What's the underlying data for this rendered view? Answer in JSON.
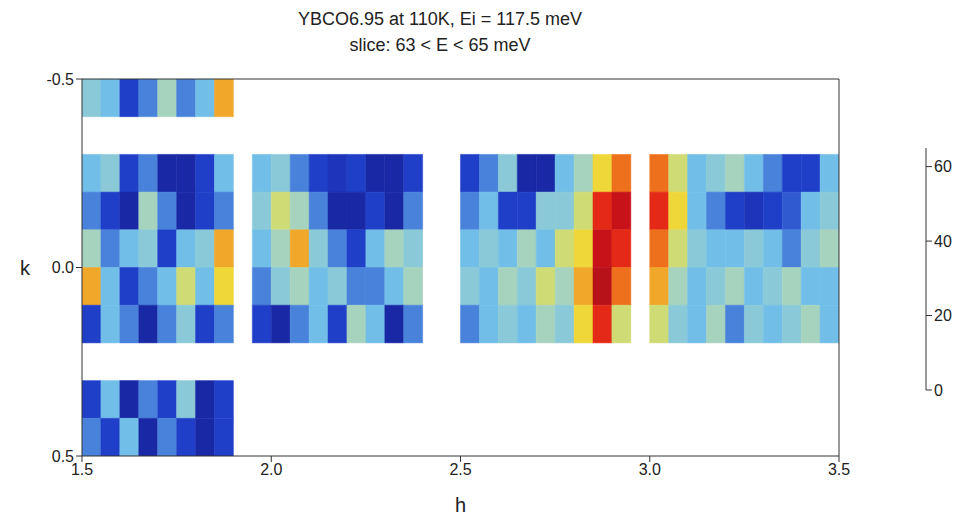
{
  "chart_data": {
    "type": "heatmap",
    "title": "YBCO6.95 at 110K, Ei = 117.5 meV",
    "subtitle": "slice: 63 < E < 65 meV",
    "x_label": "h",
    "y_label": "k",
    "xlim": [
      1.5,
      3.5
    ],
    "ylim": [
      -0.5,
      0.5
    ],
    "xticks": [
      1.5,
      {
        "value": 2,
        "label": "2.0"
      },
      2.5,
      {
        "value": 3,
        "label": "3.0"
      },
      3.5
    ],
    "yticks": [
      -0.5,
      {
        "value": 0,
        "label": "0.0"
      },
      0.5
    ],
    "grid": false,
    "h": [
      1.525,
      1.575,
      1.625,
      1.675,
      1.725,
      1.775,
      1.825,
      1.875,
      1.925,
      1.975,
      2.025,
      2.075,
      2.125,
      2.175,
      2.225,
      2.275,
      2.325,
      2.375,
      2.425,
      2.475,
      2.525,
      2.575,
      2.625,
      2.675,
      2.725,
      2.775,
      2.825,
      2.875,
      2.925,
      2.975,
      3.025,
      3.075,
      3.125,
      3.175,
      3.225,
      3.275,
      3.325,
      3.375,
      3.425,
      3.475
    ],
    "k": [
      -0.45,
      -0.35,
      -0.25,
      -0.15,
      -0.05,
      0.05,
      0.15,
      0.25,
      0.35,
      0.45
    ],
    "z": [
      [
        25,
        20,
        10,
        15,
        30,
        15,
        20,
        45,
        null,
        null,
        null,
        null,
        null,
        null,
        null,
        null,
        null,
        null,
        null,
        null,
        null,
        null,
        null,
        null,
        null,
        null,
        null,
        null,
        null,
        null,
        null,
        null,
        null,
        null,
        null,
        null,
        null,
        null,
        null,
        null
      ],
      [
        null,
        null,
        null,
        null,
        null,
        null,
        null,
        null,
        null,
        null,
        null,
        null,
        null,
        null,
        null,
        null,
        null,
        null,
        null,
        null,
        null,
        null,
        null,
        null,
        null,
        null,
        null,
        null,
        null,
        null,
        null,
        null,
        null,
        null,
        null,
        null,
        null,
        null,
        null,
        null
      ],
      [
        20,
        25,
        10,
        15,
        5,
        5,
        10,
        20,
        null,
        20,
        25,
        15,
        10,
        8,
        10,
        5,
        5,
        10,
        null,
        null,
        10,
        15,
        25,
        5,
        5,
        20,
        30,
        40,
        50,
        null,
        50,
        35,
        20,
        25,
        30,
        20,
        15,
        10,
        10,
        20
      ],
      [
        15,
        10,
        5,
        30,
        15,
        5,
        10,
        15,
        null,
        25,
        35,
        30,
        15,
        5,
        5,
        10,
        5,
        15,
        null,
        null,
        15,
        20,
        10,
        10,
        25,
        25,
        35,
        55,
        60,
        null,
        55,
        40,
        20,
        15,
        10,
        8,
        10,
        12,
        20,
        25
      ],
      [
        30,
        15,
        20,
        25,
        10,
        20,
        25,
        45,
        null,
        20,
        30,
        45,
        25,
        15,
        10,
        20,
        30,
        25,
        null,
        null,
        20,
        25,
        20,
        30,
        20,
        35,
        40,
        60,
        55,
        null,
        50,
        35,
        25,
        20,
        20,
        25,
        20,
        15,
        25,
        30
      ],
      [
        45,
        20,
        10,
        15,
        20,
        35,
        20,
        40,
        null,
        15,
        25,
        30,
        20,
        25,
        15,
        15,
        20,
        30,
        null,
        null,
        25,
        20,
        30,
        25,
        35,
        30,
        45,
        62,
        50,
        null,
        45,
        30,
        20,
        25,
        30,
        20,
        25,
        30,
        20,
        20
      ],
      [
        10,
        20,
        15,
        5,
        15,
        25,
        10,
        15,
        null,
        10,
        5,
        15,
        20,
        10,
        30,
        20,
        5,
        15,
        null,
        null,
        15,
        20,
        25,
        20,
        30,
        25,
        40,
        55,
        35,
        null,
        35,
        25,
        20,
        30,
        15,
        25,
        20,
        25,
        30,
        20
      ],
      [
        null,
        null,
        null,
        null,
        null,
        null,
        null,
        null,
        null,
        null,
        null,
        null,
        null,
        null,
        null,
        null,
        null,
        null,
        null,
        null,
        null,
        null,
        null,
        null,
        null,
        null,
        null,
        null,
        null,
        null,
        null,
        null,
        null,
        null,
        null,
        null,
        null,
        null,
        null,
        null
      ],
      [
        10,
        20,
        5,
        15,
        10,
        25,
        5,
        10,
        null,
        null,
        null,
        null,
        null,
        null,
        null,
        null,
        null,
        null,
        null,
        null,
        null,
        null,
        null,
        null,
        null,
        null,
        null,
        null,
        null,
        null,
        null,
        null,
        null,
        null,
        null,
        null,
        null,
        null,
        null,
        null
      ],
      [
        15,
        10,
        20,
        5,
        15,
        10,
        5,
        10,
        null,
        null,
        null,
        null,
        null,
        null,
        null,
        null,
        null,
        null,
        null,
        null,
        null,
        null,
        null,
        null,
        null,
        null,
        null,
        null,
        null,
        null,
        null,
        null,
        null,
        null,
        null,
        null,
        null,
        null,
        null,
        null
      ]
    ],
    "colorbar": {
      "range": [
        0,
        65
      ],
      "ticks": [
        0,
        20,
        40,
        60
      ]
    }
  }
}
